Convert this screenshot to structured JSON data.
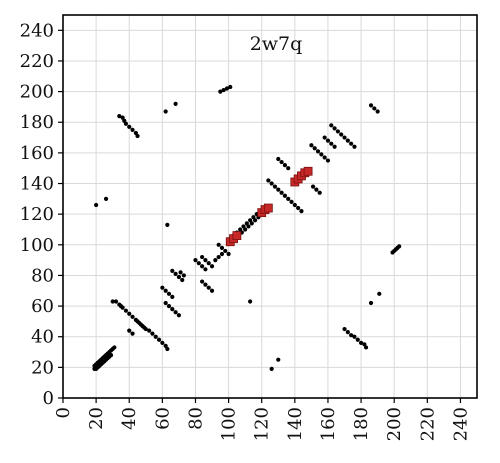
{
  "chart_data": {
    "type": "scatter",
    "title": "2w7q",
    "xlabel": "",
    "ylabel": "",
    "xlim": [
      0,
      250
    ],
    "ylim": [
      0,
      250
    ],
    "x_ticks": [
      0,
      20,
      40,
      60,
      80,
      100,
      120,
      140,
      160,
      180,
      200,
      220,
      240
    ],
    "y_ticks": [
      0,
      20,
      40,
      60,
      80,
      100,
      120,
      140,
      160,
      180,
      200,
      220,
      240
    ],
    "grid": true,
    "legend": "none",
    "colors": {
      "contacts": "#000000",
      "highlight": "#c62828",
      "grid": "#d9d9d9",
      "axis": "#000000"
    },
    "series": [
      {
        "values": [
          [
            19,
            19
          ],
          [
            20,
            20
          ],
          [
            21,
            21
          ],
          [
            22,
            22
          ],
          [
            23,
            23
          ],
          [
            24,
            24
          ],
          [
            25,
            25
          ],
          [
            26,
            26
          ],
          [
            27,
            27
          ],
          [
            28,
            28
          ],
          [
            20,
            19
          ],
          [
            21,
            20
          ],
          [
            22,
            21
          ],
          [
            23,
            22
          ],
          [
            24,
            23
          ],
          [
            25,
            24
          ],
          [
            26,
            25
          ],
          [
            27,
            26
          ],
          [
            28,
            27
          ],
          [
            29,
            28
          ],
          [
            19,
            21
          ],
          [
            20,
            22
          ],
          [
            21,
            23
          ],
          [
            22,
            24
          ],
          [
            23,
            25
          ],
          [
            24,
            26
          ],
          [
            25,
            27
          ],
          [
            26,
            28
          ],
          [
            27,
            29
          ],
          [
            28,
            30
          ],
          [
            29,
            31
          ],
          [
            30,
            32
          ],
          [
            31,
            33
          ],
          [
            30,
            63
          ],
          [
            32,
            63
          ],
          [
            34,
            61
          ],
          [
            35,
            60
          ],
          [
            36,
            59
          ],
          [
            38,
            57
          ],
          [
            40,
            55
          ],
          [
            42,
            53
          ],
          [
            44,
            51
          ],
          [
            46,
            49
          ],
          [
            48,
            47
          ],
          [
            49,
            46
          ],
          [
            50,
            45
          ],
          [
            40,
            44
          ],
          [
            42,
            42
          ],
          [
            45,
            50
          ],
          [
            47,
            48
          ],
          [
            52,
            44
          ],
          [
            54,
            42
          ],
          [
            56,
            40
          ],
          [
            58,
            38
          ],
          [
            60,
            36
          ],
          [
            62,
            34
          ],
          [
            63,
            32
          ],
          [
            60,
            72
          ],
          [
            62,
            70
          ],
          [
            64,
            68
          ],
          [
            66,
            66
          ],
          [
            62,
            62
          ],
          [
            64,
            60
          ],
          [
            66,
            58
          ],
          [
            68,
            56
          ],
          [
            70,
            54
          ],
          [
            66,
            83
          ],
          [
            68,
            81
          ],
          [
            70,
            79
          ],
          [
            72,
            77
          ],
          [
            71,
            82
          ],
          [
            73,
            80
          ],
          [
            80,
            90
          ],
          [
            82,
            88
          ],
          [
            84,
            86
          ],
          [
            86,
            84
          ],
          [
            84,
            92
          ],
          [
            86,
            90
          ],
          [
            88,
            88
          ],
          [
            90,
            86
          ],
          [
            84,
            76
          ],
          [
            86,
            74
          ],
          [
            88,
            72
          ],
          [
            90,
            70
          ],
          [
            92,
            90
          ],
          [
            94,
            92
          ],
          [
            96,
            94
          ],
          [
            94,
            100
          ],
          [
            96,
            98
          ],
          [
            98,
            96
          ],
          [
            100,
            94
          ],
          [
            102,
            102
          ],
          [
            104,
            104
          ],
          [
            106,
            106
          ],
          [
            108,
            108
          ],
          [
            110,
            110
          ],
          [
            112,
            112
          ],
          [
            114,
            114
          ],
          [
            116,
            116
          ],
          [
            118,
            118
          ],
          [
            120,
            120
          ],
          [
            122,
            122
          ],
          [
            101,
            104
          ],
          [
            103,
            106
          ],
          [
            105,
            108
          ],
          [
            107,
            110
          ],
          [
            109,
            112
          ],
          [
            111,
            114
          ],
          [
            113,
            116
          ],
          [
            115,
            118
          ],
          [
            117,
            120
          ],
          [
            119,
            122
          ],
          [
            124,
            142
          ],
          [
            126,
            140
          ],
          [
            128,
            138
          ],
          [
            130,
            136
          ],
          [
            132,
            134
          ],
          [
            134,
            132
          ],
          [
            136,
            130
          ],
          [
            138,
            128
          ],
          [
            140,
            126
          ],
          [
            142,
            124
          ],
          [
            144,
            122
          ],
          [
            130,
            156
          ],
          [
            132,
            154
          ],
          [
            134,
            152
          ],
          [
            136,
            150
          ],
          [
            142,
            142
          ],
          [
            144,
            144
          ],
          [
            146,
            146
          ],
          [
            148,
            148
          ],
          [
            150,
            165
          ],
          [
            152,
            163
          ],
          [
            154,
            161
          ],
          [
            156,
            159
          ],
          [
            158,
            157
          ],
          [
            160,
            155
          ],
          [
            151,
            138
          ],
          [
            153,
            136
          ],
          [
            155,
            134
          ],
          [
            158,
            170
          ],
          [
            160,
            168
          ],
          [
            162,
            166
          ],
          [
            164,
            164
          ],
          [
            162,
            178
          ],
          [
            164,
            176
          ],
          [
            166,
            174
          ],
          [
            168,
            172
          ],
          [
            170,
            170
          ],
          [
            172,
            168
          ],
          [
            174,
            166
          ],
          [
            176,
            164
          ],
          [
            34,
            184
          ],
          [
            36,
            183
          ],
          [
            37,
            181
          ],
          [
            38,
            179
          ],
          [
            40,
            177
          ],
          [
            42,
            175
          ],
          [
            44,
            173
          ],
          [
            45,
            171
          ],
          [
            62,
            187
          ],
          [
            68,
            192
          ],
          [
            95,
            200
          ],
          [
            97,
            201
          ],
          [
            99,
            202
          ],
          [
            101,
            203
          ],
          [
            20,
            126
          ],
          [
            26,
            130
          ],
          [
            63,
            113
          ],
          [
            113,
            63
          ],
          [
            126,
            19
          ],
          [
            130,
            25
          ],
          [
            170,
            45
          ],
          [
            172,
            43
          ],
          [
            174,
            41
          ],
          [
            176,
            40
          ],
          [
            178,
            38
          ],
          [
            180,
            36
          ],
          [
            182,
            35
          ],
          [
            183,
            33
          ],
          [
            186,
            62
          ],
          [
            191,
            68
          ],
          [
            186,
            191
          ],
          [
            188,
            189
          ],
          [
            190,
            187
          ],
          [
            199,
            95
          ],
          [
            200,
            96
          ],
          [
            201,
            97
          ],
          [
            202,
            98
          ],
          [
            203,
            99
          ]
        ]
      },
      {
        "values": [
          [
            101,
            102
          ],
          [
            103,
            104
          ],
          [
            105,
            106
          ],
          [
            120,
            121
          ],
          [
            122,
            123
          ],
          [
            124,
            124
          ],
          [
            140,
            141
          ],
          [
            142,
            143
          ],
          [
            144,
            145
          ],
          [
            146,
            147
          ],
          [
            148,
            148
          ]
        ]
      }
    ]
  }
}
